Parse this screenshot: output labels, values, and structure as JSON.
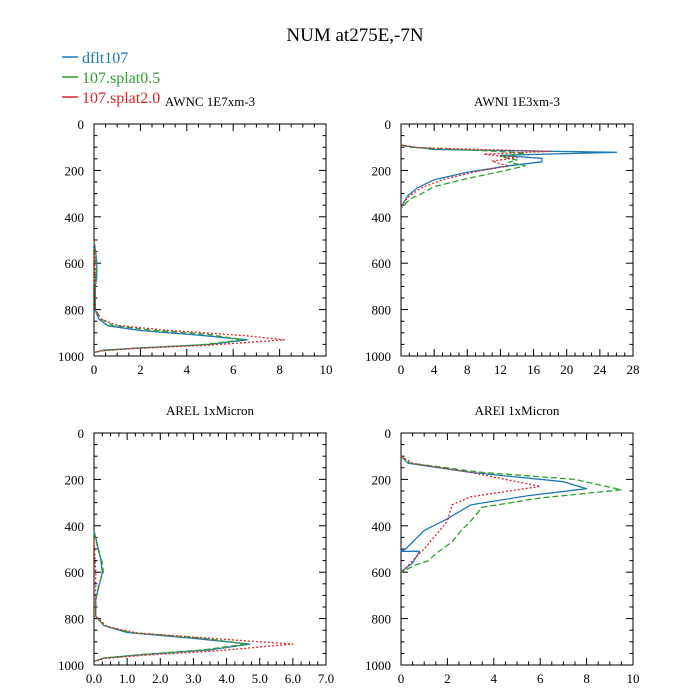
{
  "title": "NUM at275E,-7N",
  "legend": [
    {
      "name": "dflt107",
      "color": "#1f77b4",
      "dash": "solid"
    },
    {
      "name": "107.splat0.5",
      "color": "#2ca02c",
      "dash": "dashed"
    },
    {
      "name": "107.splat2.0",
      "color": "#d62728",
      "dash": "dotted"
    }
  ],
  "chart_data": [
    {
      "type": "line",
      "title": "AWNC  1E7xm-3",
      "xlim": [
        0,
        10
      ],
      "ylim": [
        1000,
        0
      ],
      "xticks": [
        0,
        2,
        4,
        6,
        8,
        10
      ],
      "xtick_labels": [
        "0",
        "2",
        "4",
        "6",
        "8",
        "10"
      ],
      "yticks": [
        0,
        200,
        400,
        600,
        800,
        1000
      ],
      "ytick_labels": [
        "0",
        "200",
        "400",
        "600",
        "800",
        "1000"
      ],
      "series": [
        {
          "name": "dflt107",
          "points": [
            [
              0,
              500
            ],
            [
              0.08,
              560
            ],
            [
              0.12,
              600
            ],
            [
              0.12,
              660
            ],
            [
              0.05,
              700
            ],
            [
              0.05,
              800
            ],
            [
              0.2,
              840
            ],
            [
              0.6,
              870
            ],
            [
              2,
              890
            ],
            [
              4.5,
              910
            ],
            [
              6.6,
              930
            ],
            [
              5,
              950
            ],
            [
              2,
              965
            ],
            [
              0.4,
              975
            ],
            [
              0,
              985
            ]
          ]
        },
        {
          "name": "107.splat0.5",
          "points": [
            [
              0,
              500
            ],
            [
              0.06,
              560
            ],
            [
              0.1,
              620
            ],
            [
              0.05,
              700
            ],
            [
              0.05,
              800
            ],
            [
              0.3,
              840
            ],
            [
              0.8,
              868
            ],
            [
              2.4,
              888
            ],
            [
              5,
              908
            ],
            [
              6.4,
              930
            ],
            [
              4.6,
              952
            ],
            [
              1.5,
              968
            ],
            [
              0.3,
              978
            ],
            [
              0,
              985
            ]
          ]
        },
        {
          "name": "107.splat2.0",
          "points": [
            [
              0,
              500
            ],
            [
              0.04,
              600
            ],
            [
              0.04,
              700
            ],
            [
              0.05,
              800
            ],
            [
              0.3,
              840
            ],
            [
              1,
              868
            ],
            [
              3,
              888
            ],
            [
              6.5,
              912
            ],
            [
              8.2,
              930
            ],
            [
              5,
              953
            ],
            [
              1.6,
              968
            ],
            [
              0.3,
              978
            ],
            [
              0,
              985
            ]
          ]
        }
      ]
    },
    {
      "type": "line",
      "title": "AWNI  1E3xm-3",
      "xlim": [
        0,
        28
      ],
      "ylim": [
        1000,
        0
      ],
      "xticks": [
        0,
        4,
        8,
        12,
        16,
        20,
        24,
        28
      ],
      "xtick_labels": [
        "0",
        "4",
        "8",
        "12",
        "16",
        "20",
        "24",
        "28"
      ],
      "yticks": [
        0,
        200,
        400,
        600,
        800,
        1000
      ],
      "ytick_labels": [
        "0",
        "200",
        "400",
        "600",
        "800",
        "1000"
      ],
      "series": [
        {
          "name": "dflt107",
          "points": [
            [
              0,
              90
            ],
            [
              0.5,
              95
            ],
            [
              4,
              110
            ],
            [
              26,
              122
            ],
            [
              12,
              135
            ],
            [
              17,
              148
            ],
            [
              17,
              163
            ],
            [
              13,
              180
            ],
            [
              8,
              208
            ],
            [
              4,
              240
            ],
            [
              2,
              275
            ],
            [
              0.8,
              310
            ],
            [
              0.3,
              340
            ],
            [
              0,
              360
            ]
          ]
        },
        {
          "name": "107.splat0.5",
          "points": [
            [
              0,
              90
            ],
            [
              1,
              100
            ],
            [
              10,
              115
            ],
            [
              15,
              125
            ],
            [
              12,
              140
            ],
            [
              14,
              155
            ],
            [
              13,
              165
            ],
            [
              15,
              180
            ],
            [
              12,
              205
            ],
            [
              8,
              235
            ],
            [
              4,
              270
            ],
            [
              2.5,
              300
            ],
            [
              1.3,
              320
            ],
            [
              0.6,
              340
            ],
            [
              0.3,
              355
            ],
            [
              0,
              365
            ]
          ]
        },
        {
          "name": "107.splat2.0",
          "points": [
            [
              0,
              90
            ],
            [
              2,
              102
            ],
            [
              18,
              118
            ],
            [
              10,
              130
            ],
            [
              14,
              145
            ],
            [
              11,
              160
            ],
            [
              12,
              172
            ],
            [
              13,
              180
            ],
            [
              9,
              205
            ],
            [
              5,
              240
            ],
            [
              2.5,
              275
            ],
            [
              1,
              310
            ],
            [
              0.4,
              335
            ],
            [
              0,
              360
            ]
          ]
        }
      ]
    },
    {
      "type": "line",
      "title": "AREL  1xMicron",
      "xlim": [
        0,
        7
      ],
      "ylim": [
        1000,
        0
      ],
      "xticks": [
        0,
        1,
        2,
        3,
        4,
        5,
        6,
        7
      ],
      "xtick_labels": [
        "0.0",
        "1.0",
        "2.0",
        "3.0",
        "4.0",
        "5.0",
        "6.0",
        "7.0"
      ],
      "yticks": [
        0,
        200,
        400,
        600,
        800,
        1000
      ],
      "ytick_labels": [
        "0",
        "200",
        "400",
        "600",
        "800",
        "1000"
      ],
      "series": [
        {
          "name": "dflt107",
          "points": [
            [
              0,
              420
            ],
            [
              0.1,
              480
            ],
            [
              0.2,
              540
            ],
            [
              0.25,
              600
            ],
            [
              0.15,
              660
            ],
            [
              0.05,
              720
            ],
            [
              0.05,
              790
            ],
            [
              0.3,
              830
            ],
            [
              1,
              860
            ],
            [
              3,
              885
            ],
            [
              4.7,
              910
            ],
            [
              3.5,
              935
            ],
            [
              1.5,
              955
            ],
            [
              0.3,
              970
            ],
            [
              0,
              985
            ]
          ]
        },
        {
          "name": "107.splat0.5",
          "points": [
            [
              0,
              430
            ],
            [
              0.12,
              500
            ],
            [
              0.25,
              560
            ],
            [
              0.28,
              600
            ],
            [
              0.15,
              650
            ],
            [
              0.05,
              720
            ],
            [
              0.05,
              790
            ],
            [
              0.3,
              830
            ],
            [
              1.1,
              860
            ],
            [
              3.3,
              885
            ],
            [
              4.6,
              910
            ],
            [
              3.3,
              935
            ],
            [
              1.4,
              955
            ],
            [
              0.3,
              970
            ],
            [
              0,
              985
            ]
          ]
        },
        {
          "name": "107.splat2.0",
          "points": [
            [
              0,
              450
            ],
            [
              0.05,
              600
            ],
            [
              0.05,
              700
            ],
            [
              0.05,
              790
            ],
            [
              0.4,
              835
            ],
            [
              1.3,
              862
            ],
            [
              3.5,
              885
            ],
            [
              6,
              910
            ],
            [
              3.8,
              938
            ],
            [
              1.5,
              958
            ],
            [
              0.3,
              972
            ],
            [
              0,
              985
            ]
          ]
        }
      ]
    },
    {
      "type": "line",
      "title": "AREI  1xMicron",
      "xlim": [
        0,
        10
      ],
      "ylim": [
        1000,
        0
      ],
      "xticks": [
        0,
        2,
        4,
        6,
        8,
        10
      ],
      "xtick_labels": [
        "0",
        "2",
        "4",
        "6",
        "8",
        "10"
      ],
      "yticks": [
        0,
        200,
        400,
        600,
        800,
        1000
      ],
      "ytick_labels": [
        "0",
        "200",
        "400",
        "600",
        "800",
        "1000"
      ],
      "series": [
        {
          "name": "dflt107",
          "points": [
            [
              0,
              100
            ],
            [
              0.3,
              130
            ],
            [
              3,
              170
            ],
            [
              7,
              210
            ],
            [
              8,
              240
            ],
            [
              5.5,
              270
            ],
            [
              3,
              310
            ],
            [
              2,
              370
            ],
            [
              1,
              420
            ],
            [
              0.5,
              470
            ],
            [
              0.2,
              500
            ],
            [
              0,
              510
            ],
            [
              0.8,
              510
            ],
            [
              0.5,
              560
            ],
            [
              0.1,
              590
            ],
            [
              0,
              600
            ]
          ]
        },
        {
          "name": "107.splat0.5",
          "points": [
            [
              0,
              100
            ],
            [
              0.4,
              130
            ],
            [
              3.5,
              170
            ],
            [
              7.5,
              200
            ],
            [
              9.5,
              245
            ],
            [
              6,
              280
            ],
            [
              3.5,
              320
            ],
            [
              3,
              380
            ],
            [
              2.6,
              420
            ],
            [
              2.2,
              470
            ],
            [
              1.5,
              520
            ],
            [
              1.2,
              550
            ],
            [
              0.6,
              570
            ],
            [
              0.2,
              590
            ],
            [
              0,
              600
            ]
          ]
        },
        {
          "name": "107.splat2.0",
          "points": [
            [
              0,
              100
            ],
            [
              0.5,
              130
            ],
            [
              3,
              170
            ],
            [
              6,
              230
            ],
            [
              3,
              275
            ],
            [
              2.2,
              310
            ],
            [
              2,
              380
            ],
            [
              1.5,
              440
            ],
            [
              1,
              500
            ],
            [
              0.5,
              550
            ],
            [
              0.15,
              590
            ],
            [
              0,
              600
            ]
          ]
        }
      ]
    }
  ]
}
